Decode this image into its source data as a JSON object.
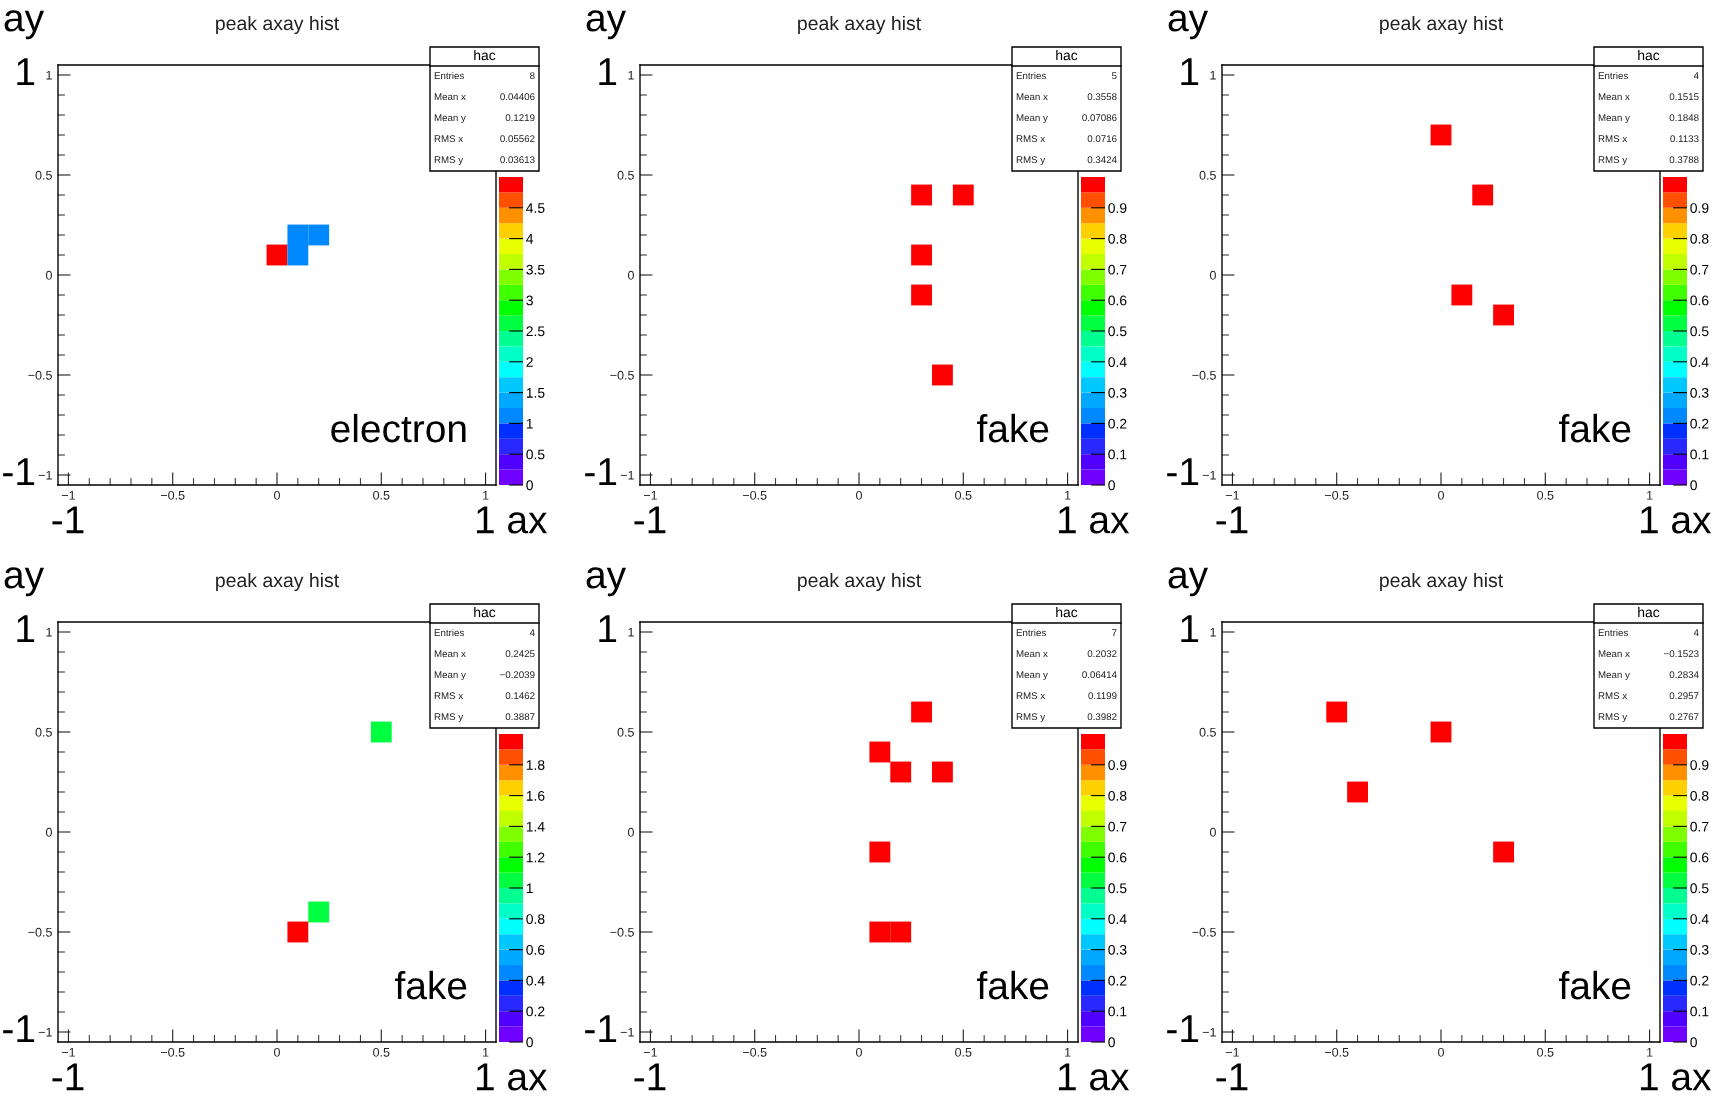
{
  "chart_data": [
    {
      "type": "scatter",
      "title": "peak axay hist",
      "marker": "square",
      "x": [
        0,
        0.1,
        0.1,
        0.2
      ],
      "values": [
        0.1,
        0.1,
        0.2,
        0.2
      ],
      "cvalues": [
        5,
        1,
        1,
        1
      ],
      "clim": [
        0,
        5
      ],
      "cticks": [
        0,
        0.5,
        1,
        1.5,
        2,
        2.5,
        3,
        3.5,
        4,
        4.5
      ],
      "xlim": [
        -1.05,
        1.05
      ],
      "ylim": [
        -1.05,
        1.05
      ],
      "xticks": [
        -1,
        -0.5,
        0,
        0.5,
        1
      ],
      "yticks": [
        -1,
        -0.5,
        0,
        0.5,
        1
      ],
      "annotations": [
        "ay",
        "1",
        "-1",
        "-1",
        "1 ax",
        "electron",
        "hac",
        "Entries",
        "8",
        "Mean x",
        "0.04406",
        "Mean y",
        "0.1219",
        "RMS x",
        "0.05562",
        "RMS y",
        "0.03613"
      ]
    },
    {
      "type": "scatter",
      "title": "peak axay hist",
      "marker": "square",
      "x": [
        0.3,
        0.5,
        0.3,
        0.3,
        0.4
      ],
      "values": [
        0.4,
        0.4,
        0.1,
        -0.1,
        -0.5
      ],
      "cvalues": [
        1,
        1,
        1,
        1,
        1
      ],
      "clim": [
        0,
        1
      ],
      "cticks": [
        0,
        0.1,
        0.2,
        0.3,
        0.4,
        0.5,
        0.6,
        0.7,
        0.8,
        0.9
      ],
      "xlim": [
        -1.05,
        1.05
      ],
      "ylim": [
        -1.05,
        1.05
      ],
      "xticks": [
        -1,
        -0.5,
        0,
        0.5,
        1
      ],
      "yticks": [
        -1,
        -0.5,
        0,
        0.5,
        1
      ],
      "annotations": [
        "ay",
        "1",
        "-1",
        "-1",
        "1 ax",
        "fake",
        "hac",
        "Entries",
        "5",
        "Mean x",
        "0.3558",
        "Mean y",
        "0.07086",
        "RMS x",
        "0.0716",
        "RMS y",
        "0.3424"
      ]
    },
    {
      "type": "scatter",
      "title": "peak axay hist",
      "marker": "square",
      "x": [
        0,
        0.2,
        0.1,
        0.3
      ],
      "values": [
        0.7,
        0.4,
        -0.1,
        -0.2
      ],
      "cvalues": [
        1,
        1,
        1,
        1
      ],
      "clim": [
        0,
        1
      ],
      "cticks": [
        0,
        0.1,
        0.2,
        0.3,
        0.4,
        0.5,
        0.6,
        0.7,
        0.8,
        0.9
      ],
      "xlim": [
        -1.05,
        1.05
      ],
      "ylim": [
        -1.05,
        1.05
      ],
      "xticks": [
        -1,
        -0.5,
        0,
        0.5,
        1
      ],
      "yticks": [
        -1,
        -0.5,
        0,
        0.5,
        1
      ],
      "annotations": [
        "ay",
        "1",
        "-1",
        "-1",
        "1 ax",
        "fake",
        "hac",
        "Entries",
        "4",
        "Mean x",
        "0.1515",
        "Mean y",
        "0.1848",
        "RMS x",
        "0.1133",
        "RMS y",
        "0.3788"
      ]
    },
    {
      "type": "scatter",
      "title": "peak axay hist",
      "marker": "square",
      "x": [
        0.5,
        0.2,
        0.1
      ],
      "values": [
        0.5,
        -0.4,
        -0.5
      ],
      "cvalues": [
        1,
        1,
        2
      ],
      "clim": [
        0,
        2
      ],
      "cticks": [
        0,
        0.2,
        0.4,
        0.6,
        0.8,
        1,
        1.2,
        1.4,
        1.6,
        1.8
      ],
      "xlim": [
        -1.05,
        1.05
      ],
      "ylim": [
        -1.05,
        1.05
      ],
      "xticks": [
        -1,
        -0.5,
        0,
        0.5,
        1
      ],
      "yticks": [
        -1,
        -0.5,
        0,
        0.5,
        1
      ],
      "annotations": [
        "ay",
        "1",
        "-1",
        "-1",
        "1 ax",
        "fake",
        "hac",
        "Entries",
        "4",
        "Mean x",
        "0.2425",
        "Mean y",
        "−0.2039",
        "RMS x",
        "0.1462",
        "RMS y",
        "0.3887"
      ]
    },
    {
      "type": "scatter",
      "title": "peak axay hist",
      "marker": "square",
      "x": [
        0.3,
        0.1,
        0.2,
        0.4,
        0.1,
        0.1,
        0.2
      ],
      "values": [
        0.6,
        0.4,
        0.3,
        0.3,
        -0.1,
        -0.5,
        -0.5
      ],
      "cvalues": [
        1,
        1,
        1,
        1,
        1,
        1,
        1
      ],
      "clim": [
        0,
        1
      ],
      "cticks": [
        0,
        0.1,
        0.2,
        0.3,
        0.4,
        0.5,
        0.6,
        0.7,
        0.8,
        0.9
      ],
      "xlim": [
        -1.05,
        1.05
      ],
      "ylim": [
        -1.05,
        1.05
      ],
      "xticks": [
        -1,
        -0.5,
        0,
        0.5,
        1
      ],
      "yticks": [
        -1,
        -0.5,
        0,
        0.5,
        1
      ],
      "annotations": [
        "ay",
        "1",
        "-1",
        "-1",
        "1 ax",
        "fake",
        "hac",
        "Entries",
        "7",
        "Mean x",
        "0.2032",
        "Mean y",
        "0.06414",
        "RMS x",
        "0.1199",
        "RMS y",
        "0.3982"
      ]
    },
    {
      "type": "scatter",
      "title": "peak axay hist",
      "marker": "square",
      "x": [
        -0.5,
        0,
        -0.4,
        0.3
      ],
      "values": [
        0.6,
        0.5,
        0.2,
        -0.1
      ],
      "cvalues": [
        1,
        1,
        1,
        1
      ],
      "clim": [
        0,
        1
      ],
      "cticks": [
        0,
        0.1,
        0.2,
        0.3,
        0.4,
        0.5,
        0.6,
        0.7,
        0.8,
        0.9
      ],
      "xlim": [
        -1.05,
        1.05
      ],
      "ylim": [
        -1.05,
        1.05
      ],
      "xticks": [
        -1,
        -0.5,
        0,
        0.5,
        1
      ],
      "yticks": [
        -1,
        -0.5,
        0,
        0.5,
        1
      ],
      "annotations": [
        "ay",
        "1",
        "-1",
        "-1",
        "1 ax",
        "fake",
        "hac",
        "Entries",
        "4",
        "Mean x",
        "−0.1523",
        "Mean y",
        "0.2834",
        "RMS x",
        "0.2957",
        "RMS y",
        "0.2767"
      ]
    }
  ]
}
